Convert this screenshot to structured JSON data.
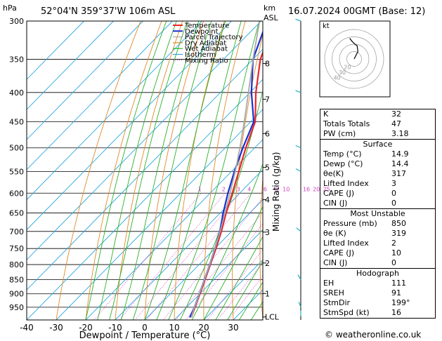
{
  "header": {
    "pressure_unit": "hPa",
    "location": "52°04'N  359°37'W  106m  ASL",
    "height_unit_1": "km",
    "height_unit_2": "ASL",
    "datetime": "16.07.2024  00GMT  (Base: 12)"
  },
  "chart_data": {
    "type": "line",
    "title": "",
    "xlabel": "Dewpoint / Temperature (°C)",
    "ylabel_right": "Mixing Ratio (g/kg)",
    "pressure_levels": [
      300,
      350,
      400,
      450,
      500,
      550,
      600,
      650,
      700,
      750,
      800,
      850,
      900,
      950
    ],
    "x_ticks": [
      -40,
      -30,
      -20,
      -10,
      0,
      10,
      20,
      30
    ],
    "xlim": [
      -40,
      40
    ],
    "ylim": [
      300,
      1000
    ],
    "skew": "T-logp",
    "height_ticks": [
      {
        "label": "8",
        "p": 356
      },
      {
        "label": "7",
        "p": 411
      },
      {
        "label": "6",
        "p": 472
      },
      {
        "label": "5",
        "p": 541
      },
      {
        "label": "4",
        "p": 616
      },
      {
        "label": "3",
        "p": 702
      },
      {
        "label": "2",
        "p": 795
      },
      {
        "label": "1",
        "p": 899
      },
      {
        "label": "LCL",
        "p": 988
      }
    ],
    "mixing_ratio_labels": [
      "1",
      "2",
      "3",
      "4",
      "6",
      "8",
      "10",
      "16",
      "20",
      "25"
    ],
    "mixing_ratio_values": [
      1,
      2,
      3,
      4,
      6,
      8,
      10,
      16,
      20,
      25
    ],
    "legend": [
      "Temperature",
      "Dewpoint",
      "Parcel Trajectory",
      "Dry Adiabat",
      "Wet Adiabat",
      "Isotherm",
      "Mixing Ratio"
    ],
    "legend_position": "top-right",
    "series": [
      {
        "name": "Temperature",
        "color": "#e8262b",
        "p": [
          990,
          950,
          900,
          850,
          800,
          750,
          700,
          650,
          600,
          550,
          500,
          450,
          400,
          350,
          300
        ],
        "t": [
          14.9,
          12.8,
          10.0,
          7.0,
          3.8,
          0.4,
          -3.5,
          -8.0,
          -12.5,
          -17.5,
          -23.0,
          -28.5,
          -38.0,
          -47.5,
          -55.5
        ]
      },
      {
        "name": "Dewpoint",
        "color": "#1a2fd0",
        "p": [
          990,
          950,
          900,
          850,
          800,
          750,
          700,
          650,
          600,
          550,
          500,
          450,
          400,
          350,
          300
        ],
        "t": [
          14.4,
          12.6,
          9.8,
          6.8,
          3.6,
          0.0,
          -4.0,
          -9.0,
          -14.0,
          -19.0,
          -24.0,
          -29.0,
          -39.5,
          -50.0,
          -58.0
        ]
      },
      {
        "name": "Parcel Trajectory",
        "color": "#a8a8a8",
        "p": [
          990,
          950,
          900,
          850,
          800,
          750,
          700,
          650,
          600,
          550,
          500,
          450,
          400,
          350,
          300
        ],
        "t": [
          14.9,
          12.6,
          9.8,
          6.8,
          3.6,
          0.0,
          -3.9,
          -8.4,
          -13.3,
          -18.7,
          -25.0,
          -32.2,
          -40.5,
          -50.0,
          -60.5
        ]
      }
    ],
    "dry_adiabat_thetas": [
      -30,
      -20,
      -10,
      0,
      10,
      20,
      30,
      40,
      50,
      60,
      70,
      80,
      90,
      100,
      110,
      120,
      130,
      140,
      150,
      160
    ],
    "wet_adiabat_starts": [
      -20,
      -16,
      -12,
      -8,
      -4,
      0,
      4,
      8,
      12,
      16,
      20,
      24,
      28,
      32,
      36
    ],
    "wind_barbs": [
      {
        "p": 300,
        "dir": 250,
        "spd": 45
      },
      {
        "p": 400,
        "dir": 250,
        "spd": 40
      },
      {
        "p": 500,
        "dir": 245,
        "spd": 25
      },
      {
        "p": 550,
        "dir": 240,
        "spd": 20
      },
      {
        "p": 700,
        "dir": 230,
        "spd": 15
      },
      {
        "p": 850,
        "dir": 210,
        "spd": 10
      },
      {
        "p": 950,
        "dir": 200,
        "spd": 10
      },
      {
        "p": 985,
        "dir": 180,
        "spd": 5
      }
    ]
  },
  "hodograph": {
    "label": "kt",
    "rings": [
      10,
      20,
      30,
      40
    ],
    "ring_labels": [
      "40",
      "30",
      "20"
    ],
    "trace_u": [
      0,
      2,
      5,
      4,
      1,
      -3,
      -6
    ],
    "trace_v": [
      0,
      4,
      10,
      18,
      20,
      24,
      28
    ]
  },
  "indices": {
    "k": {
      "label": "K",
      "value": "32"
    },
    "tt": {
      "label": "Totals Totals",
      "value": "47"
    },
    "pw": {
      "label": "PW (cm)",
      "value": "3.18"
    }
  },
  "surface": {
    "title": "Surface",
    "rows": [
      {
        "label": "Temp (°C)",
        "value": "14.9"
      },
      {
        "label": "Dewp (°C)",
        "value": "14.4"
      },
      {
        "label": "θe(K)",
        "value": "317"
      },
      {
        "label": "Lifted Index",
        "value": "3"
      },
      {
        "label": "CAPE (J)",
        "value": "0"
      },
      {
        "label": "CIN (J)",
        "value": "0"
      }
    ]
  },
  "most_unstable": {
    "title": "Most Unstable",
    "rows": [
      {
        "label": "Pressure (mb)",
        "value": "850"
      },
      {
        "label": "θe (K)",
        "value": "319"
      },
      {
        "label": "Lifted Index",
        "value": "2"
      },
      {
        "label": "CAPE (J)",
        "value": "10"
      },
      {
        "label": "CIN (J)",
        "value": "0"
      }
    ]
  },
  "hodograph_table": {
    "title": "Hodograph",
    "rows": [
      {
        "label": "EH",
        "value": "111"
      },
      {
        "label": "SREH",
        "value": "91"
      },
      {
        "label": "StmDir",
        "value": "199°"
      },
      {
        "label": "StmSpd (kt)",
        "value": "16"
      }
    ]
  },
  "copyright": "© weatheronline.co.uk",
  "colors": {
    "temperature": "#e8262b",
    "dewpoint": "#1a2fd0",
    "parcel": "#a8a8a8",
    "dry_adiabat": "#e08a2a",
    "wet_adiabat": "#2bb02b",
    "isotherm": "#2aa8e0",
    "mixing_ratio": "#d040c0",
    "wind": "#20b0c0"
  }
}
